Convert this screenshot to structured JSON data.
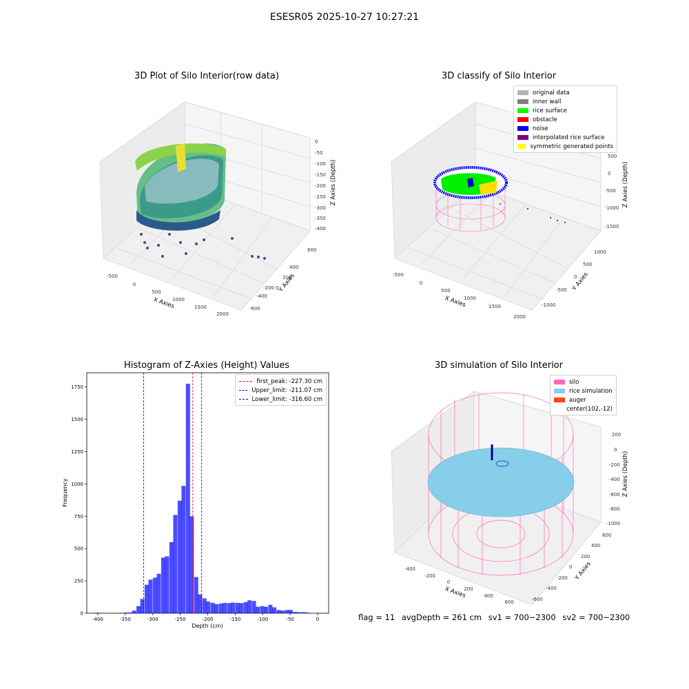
{
  "figure": {
    "suptitle": "ESESR05 2025-10-27 10:27:21",
    "footer": {
      "flag": "flag = 11",
      "avg_depth": "avgDepth = 261 cm",
      "sv1": "sv1 = 700~2300",
      "sv2": "sv2 = 700~2300"
    }
  },
  "panels": {
    "raw": {
      "title": "3D Plot of Silo Interior(row data)",
      "xlabel": "X Axies",
      "ylabel": "Y Axies",
      "zlabel": "Z Axies (Depth)",
      "xticks": [
        "-500",
        "0",
        "500",
        "1000",
        "1500",
        "2000"
      ],
      "yticks": [
        "600",
        "400",
        "200",
        "0",
        "-200",
        "-400",
        "-600"
      ],
      "zticks": [
        "0",
        "-50",
        "-100",
        "-150",
        "-200",
        "-250",
        "-300",
        "-350",
        "-400"
      ]
    },
    "classify": {
      "title": "3D classify of Silo Interior",
      "xlabel": "X Axies",
      "ylabel": "Y Axies",
      "zlabel": "Z Axies (Depth)",
      "xticks": [
        "-500",
        "0",
        "500",
        "1000",
        "1500",
        "2000"
      ],
      "yticks": [
        "1000",
        "500",
        "0",
        "-500",
        "-1000"
      ],
      "zticks": [
        "500",
        "0",
        "-500",
        "-1000",
        "-1500"
      ],
      "legend": [
        {
          "label": "original data",
          "color": "#b3b3b3"
        },
        {
          "label": "inner wall",
          "color": "#808080"
        },
        {
          "label": "rice surface",
          "color": "#00ff00"
        },
        {
          "label": "obstacle",
          "color": "#ff0000"
        },
        {
          "label": "noise",
          "color": "#0000ff"
        },
        {
          "label": "interpolated rice surface",
          "color": "#800080"
        },
        {
          "label": "symmetric generated points",
          "color": "#ffff00"
        }
      ]
    },
    "simulation": {
      "title": "3D simulation of Silo Interior",
      "xlabel": "X Axies",
      "ylabel": "Y Axies",
      "zlabel": "Z Axies (Depth)",
      "xticks": [
        "-400",
        "-200",
        "0",
        "200",
        "400",
        "600"
      ],
      "yticks": [
        "600",
        "400",
        "200",
        "0",
        "-200",
        "-400",
        "-600"
      ],
      "zticks": [
        "200",
        "0",
        "-200",
        "-400",
        "-600",
        "-800",
        "-1000"
      ],
      "legend": [
        {
          "label": "silo",
          "color": "#ff69b4"
        },
        {
          "label": "rice simulation",
          "color": "#87ceeb"
        },
        {
          "label": "auger",
          "color": "#ff4500"
        },
        {
          "label": "center(102,-12)",
          "color": "#ffffff"
        }
      ]
    }
  },
  "chart_data": {
    "type": "bar",
    "title": "Histogram of Z-Axies (Height) Values",
    "xlabel": "Depth (cm)",
    "ylabel": "Frequency",
    "xlim": [
      -420,
      20
    ],
    "ylim": [
      0,
      1860
    ],
    "xticks": [
      -400,
      -350,
      -300,
      -250,
      -200,
      -150,
      -100,
      -50,
      0
    ],
    "yticks": [
      0,
      250,
      500,
      750,
      1000,
      1250,
      1500,
      1750
    ],
    "bin_width": 7.5,
    "bins": [
      {
        "x": -402,
        "v": 4
      },
      {
        "x": -357,
        "v": 3
      },
      {
        "x": -349,
        "v": 5
      },
      {
        "x": -342,
        "v": 6
      },
      {
        "x": -334,
        "v": 20
      },
      {
        "x": -326,
        "v": 55
      },
      {
        "x": -319,
        "v": 110
      },
      {
        "x": -311,
        "v": 220
      },
      {
        "x": -304,
        "v": 260
      },
      {
        "x": -296,
        "v": 275
      },
      {
        "x": -289,
        "v": 305
      },
      {
        "x": -281,
        "v": 430
      },
      {
        "x": -274,
        "v": 440
      },
      {
        "x": -266,
        "v": 550
      },
      {
        "x": -259,
        "v": 760
      },
      {
        "x": -251,
        "v": 870
      },
      {
        "x": -244,
        "v": 985
      },
      {
        "x": -236,
        "v": 1775
      },
      {
        "x": -229,
        "v": 750
      },
      {
        "x": -221,
        "v": 280
      },
      {
        "x": -214,
        "v": 145
      },
      {
        "x": -206,
        "v": 115
      },
      {
        "x": -199,
        "v": 90
      },
      {
        "x": -191,
        "v": 80
      },
      {
        "x": -184,
        "v": 70
      },
      {
        "x": -176,
        "v": 75
      },
      {
        "x": -169,
        "v": 80
      },
      {
        "x": -161,
        "v": 78
      },
      {
        "x": -154,
        "v": 82
      },
      {
        "x": -146,
        "v": 80
      },
      {
        "x": -139,
        "v": 78
      },
      {
        "x": -131,
        "v": 85
      },
      {
        "x": -124,
        "v": 100
      },
      {
        "x": -116,
        "v": 95
      },
      {
        "x": -109,
        "v": 50
      },
      {
        "x": -101,
        "v": 55
      },
      {
        "x": -94,
        "v": 50
      },
      {
        "x": -86,
        "v": 65
      },
      {
        "x": -79,
        "v": 45
      },
      {
        "x": -71,
        "v": 25
      },
      {
        "x": -64,
        "v": 20
      },
      {
        "x": -56,
        "v": 25
      },
      {
        "x": -49,
        "v": 25
      },
      {
        "x": -41,
        "v": 10
      },
      {
        "x": -34,
        "v": 8
      },
      {
        "x": -26,
        "v": 8
      },
      {
        "x": -19,
        "v": 5
      }
    ],
    "vlines": [
      {
        "label": "first_peak: -227.30 cm",
        "x": -227.3,
        "color": "#ff0000"
      },
      {
        "label": "Upper_limit: -211.07 cm",
        "x": -211.07,
        "color": "#0000aa"
      },
      {
        "label": "Lower_limit: -316.60 cm",
        "x": -316.6,
        "color": "#0000aa"
      }
    ]
  }
}
